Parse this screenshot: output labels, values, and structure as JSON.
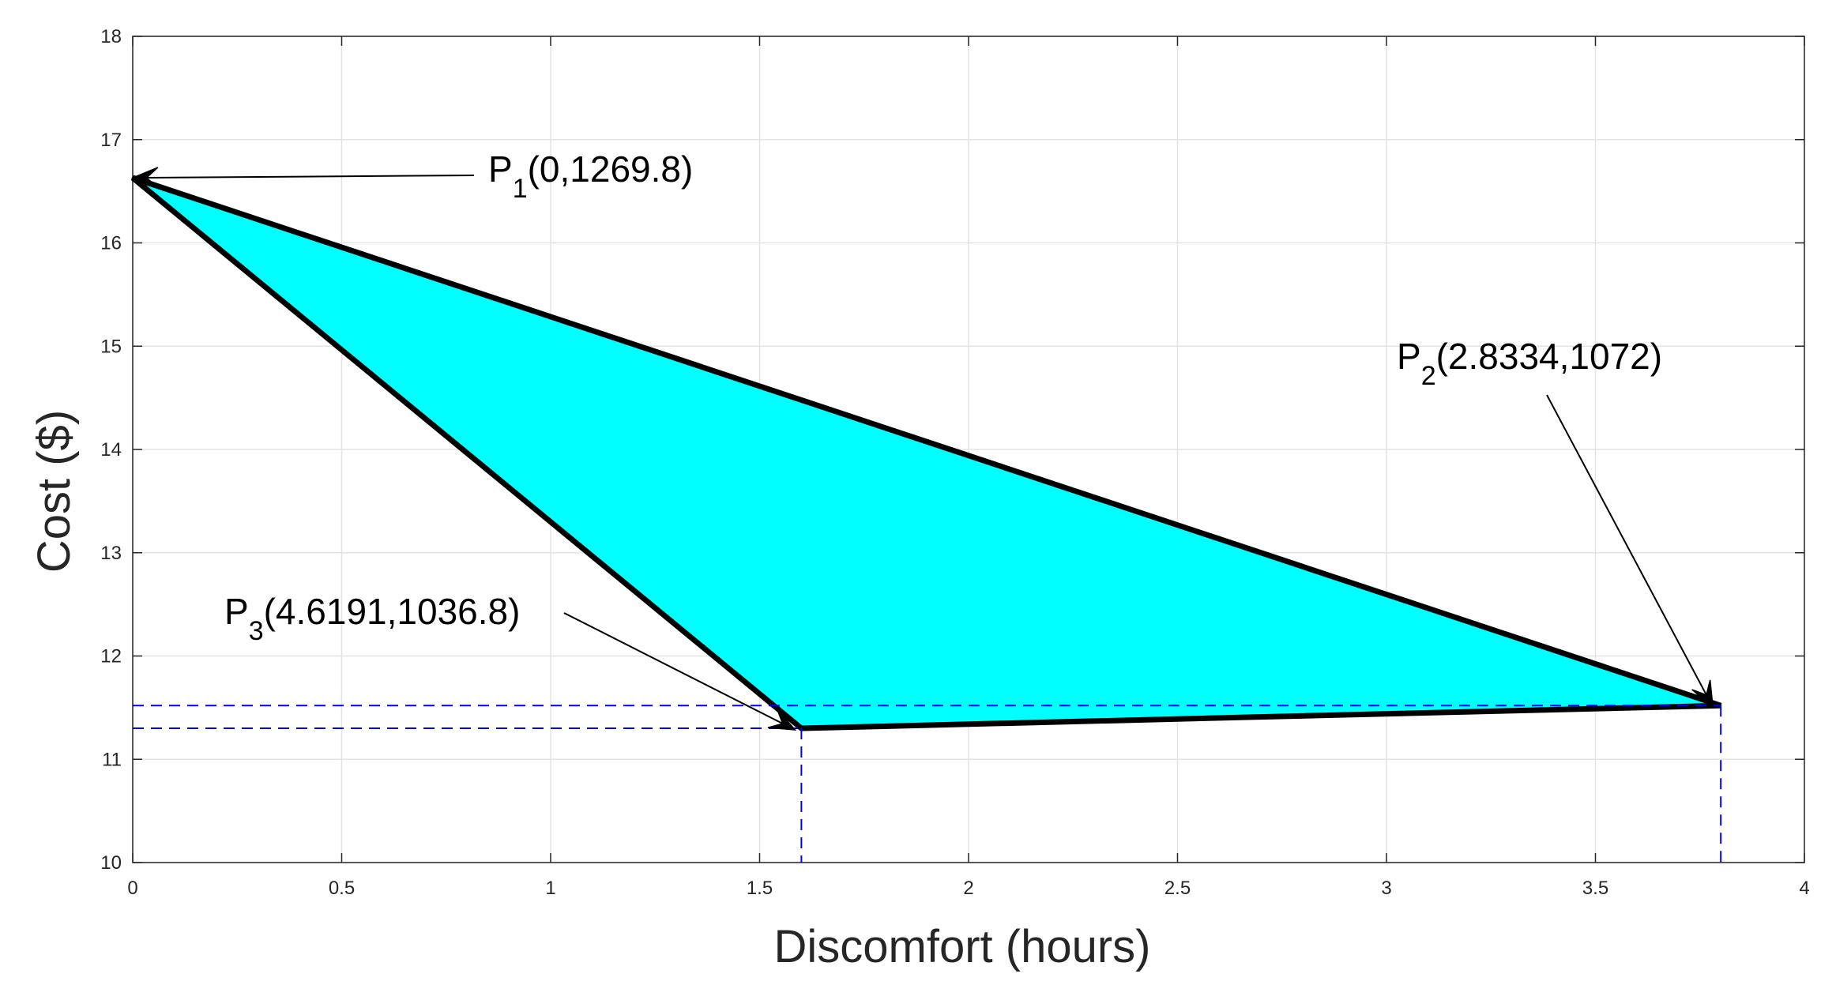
{
  "chart_data": {
    "type": "area",
    "xlabel": "Discomfort (hours)",
    "ylabel": "Cost ($)",
    "xlim": [
      0,
      4
    ],
    "ylim": [
      10,
      18
    ],
    "grid": true,
    "x_ticks": [
      "0",
      "0.5",
      "1",
      "1.5",
      "2",
      "2.5",
      "3",
      "3.5",
      "4"
    ],
    "y_ticks": [
      "10",
      "11",
      "12",
      "13",
      "14",
      "15",
      "16",
      "17",
      "18"
    ],
    "fill_color": "#00ffff",
    "edge_color": "#000000",
    "guide_color": "#0000ff",
    "polygon": [
      {
        "x": 0,
        "y": 16.63
      },
      {
        "x": 3.8,
        "y": 11.52
      },
      {
        "x": 1.6,
        "y": 11.3
      }
    ],
    "annotations": [
      {
        "point": "P",
        "sub": "1",
        "text": "(0,1269.8)"
      },
      {
        "point": "P",
        "sub": "2",
        "text": "(2.8334,1072)"
      },
      {
        "point": "P",
        "sub": "3",
        "text": "(4.6191,1036.8)"
      }
    ]
  }
}
